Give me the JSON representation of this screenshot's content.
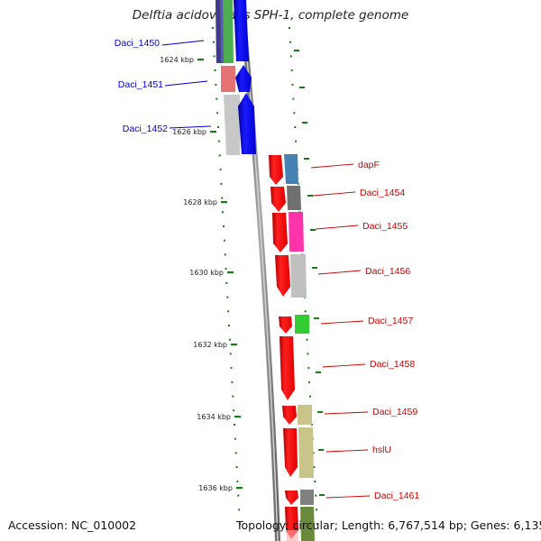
{
  "title": "Delftia acidovorans SPH-1, complete genome",
  "accession_label": "Accession: NC_010002",
  "topology_label": "Topology: circular; Length: 6,767,514 bp; Genes: 6,135",
  "colors": {
    "left_label": "#0000cc",
    "right_label": "#cc0000",
    "tick": "#1a7a1a",
    "backbone": "#888888"
  },
  "kbp_ticks": [
    {
      "kbp": 1624,
      "label": "1624 kbp"
    },
    {
      "kbp": 1626,
      "label": "1626 kbp"
    },
    {
      "kbp": 1628,
      "label": "1628 kbp"
    },
    {
      "kbp": 1630,
      "label": "1630 kbp"
    },
    {
      "kbp": 1632,
      "label": "1632 kbp"
    },
    {
      "kbp": 1634,
      "label": "1634 kbp"
    },
    {
      "kbp": 1636,
      "label": "1636 kbp"
    }
  ],
  "left_genes": [
    {
      "name": "Daci_1450",
      "color": "#4caf50"
    },
    {
      "name": "Daci_1451",
      "color": "#e57373"
    },
    {
      "name": "Daci_1452",
      "color": "#c8c8c8"
    }
  ],
  "right_genes": [
    {
      "name": "dapF",
      "color": "#4682b4"
    },
    {
      "name": "Daci_1454",
      "color": "#707070"
    },
    {
      "name": "Daci_1455",
      "color": "#ff33aa"
    },
    {
      "name": "Daci_1456",
      "color": "#c0c0c0"
    },
    {
      "name": "Daci_1457",
      "color": "#33cc33"
    },
    {
      "name": "Daci_1458",
      "color": null
    },
    {
      "name": "Daci_1459",
      "color": "#c8c48a"
    },
    {
      "name": "hslU",
      "color": "#c8c48a"
    },
    {
      "name": "Daci_1461",
      "color": "#808080"
    }
  ]
}
